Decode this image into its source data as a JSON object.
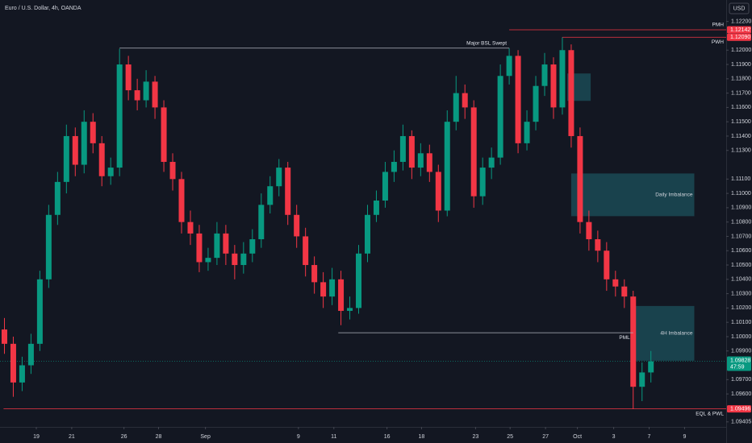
{
  "chart_data": {
    "type": "candlestick",
    "title": "Euro / U.S. Dollar, 4h, OANDA",
    "currency": "USD",
    "up_color": "#089981",
    "down_color": "#f23645",
    "grid": false,
    "xlim": [
      0,
      82
    ],
    "ylim": [
      1.0937,
      1.1235
    ],
    "x": [
      0.5,
      1.5,
      2.5,
      3.5,
      4.5,
      5.5,
      6.5,
      7.5,
      8.5,
      9.5,
      10.5,
      11.5,
      12.5,
      13.5,
      14.5,
      15.5,
      16.5,
      17.5,
      18.5,
      19.5,
      20.5,
      21.5,
      22.5,
      23.5,
      24.5,
      25.5,
      26.5,
      27.5,
      28.5,
      29.5,
      30.5,
      31.5,
      32.5,
      33.5,
      34.5,
      35.5,
      36.5,
      37.5,
      38.5,
      39.5,
      40.5,
      41.5,
      42.5,
      43.5,
      44.5,
      45.5,
      46.5,
      47.5,
      48.5,
      49.5,
      50.5,
      51.5,
      52.5,
      53.5,
      54.5,
      55.5,
      56.5,
      57.5,
      58.5,
      59.5,
      60.5,
      61.5,
      62.5,
      63.5,
      64.5,
      65.5,
      66.5,
      67.5,
      68.5,
      69.5,
      70.5,
      71.5,
      72.5,
      73.5
    ],
    "open": [
      1.1005,
      1.0995,
      1.0968,
      1.098,
      1.0995,
      1.104,
      1.1085,
      1.1108,
      1.114,
      1.112,
      1.115,
      1.1135,
      1.1112,
      1.1118,
      1.119,
      1.1172,
      1.1165,
      1.1178,
      1.116,
      1.1122,
      1.111,
      1.108,
      1.1072,
      1.1052,
      1.1055,
      1.1072,
      1.1058,
      1.105,
      1.1058,
      1.1068,
      1.1092,
      1.1105,
      1.1118,
      1.1085,
      1.107,
      1.105,
      1.1038,
      1.1028,
      1.104,
      1.1018,
      1.102,
      1.1058,
      1.1085,
      1.1095,
      1.1115,
      1.1122,
      1.114,
      1.1118,
      1.1128,
      1.1115,
      1.1088,
      1.115,
      1.117,
      1.116,
      1.1098,
      1.1118,
      1.1125,
      1.1182,
      1.1196,
      1.1135,
      1.115,
      1.1175,
      1.119,
      1.116,
      1.12,
      1.114,
      1.108,
      1.1068,
      1.106,
      1.104,
      1.1035,
      1.1028,
      1.0965,
      1.0975
    ],
    "high": [
      1.1013,
      1.1,
      1.0986,
      1.1002,
      1.1046,
      1.1092,
      1.1115,
      1.1148,
      1.1146,
      1.1158,
      1.1156,
      1.114,
      1.1125,
      1.1201,
      1.1196,
      1.118,
      1.1186,
      1.1182,
      1.1165,
      1.1128,
      1.1115,
      1.1088,
      1.1078,
      1.1062,
      1.108,
      1.1078,
      1.1064,
      1.1066,
      1.1075,
      1.11,
      1.1112,
      1.1124,
      1.1122,
      1.1092,
      1.1076,
      1.1056,
      1.1045,
      1.1048,
      1.1046,
      1.1028,
      1.1064,
      1.1092,
      1.1102,
      1.1122,
      1.113,
      1.1148,
      1.1144,
      1.1135,
      1.1134,
      1.112,
      1.1158,
      1.1182,
      1.1176,
      1.1165,
      1.1125,
      1.1132,
      1.119,
      1.12014,
      1.12,
      1.1158,
      1.1182,
      1.1198,
      1.1195,
      1.1209,
      1.1204,
      1.1146,
      1.1088,
      1.1074,
      1.1066,
      1.1046,
      1.104,
      1.1032,
      1.0982,
      1.099
    ],
    "low": [
      1.0988,
      1.0958,
      1.0962,
      1.0974,
      1.099,
      1.1034,
      1.1078,
      1.11,
      1.1112,
      1.1114,
      1.1128,
      1.1105,
      1.1106,
      1.1112,
      1.1165,
      1.1158,
      1.116,
      1.1152,
      1.1115,
      1.1102,
      1.1072,
      1.1064,
      1.1045,
      1.1046,
      1.105,
      1.105,
      1.104,
      1.1044,
      1.1052,
      1.1062,
      1.1086,
      1.1098,
      1.1078,
      1.1062,
      1.1042,
      1.103,
      1.102,
      1.1022,
      1.1008,
      1.1012,
      1.1016,
      1.1052,
      1.108,
      1.109,
      1.1108,
      1.1116,
      1.111,
      1.1112,
      1.1108,
      1.108,
      1.1084,
      1.1144,
      1.1152,
      1.109,
      1.1092,
      1.111,
      1.112,
      1.1176,
      1.1128,
      1.113,
      1.1144,
      1.1168,
      1.1152,
      1.1155,
      1.1132,
      1.1072,
      1.106,
      1.1052,
      1.1032,
      1.1028,
      1.102,
      1.09496,
      1.0955,
      1.0968
    ],
    "close": [
      1.0995,
      1.0968,
      1.098,
      1.0995,
      1.104,
      1.1085,
      1.1108,
      1.114,
      1.112,
      1.115,
      1.1135,
      1.1112,
      1.1118,
      1.119,
      1.1172,
      1.1165,
      1.1178,
      1.116,
      1.1122,
      1.111,
      1.108,
      1.1072,
      1.1052,
      1.1055,
      1.1072,
      1.1058,
      1.105,
      1.1058,
      1.1068,
      1.1092,
      1.1105,
      1.1118,
      1.1085,
      1.107,
      1.105,
      1.1038,
      1.1028,
      1.104,
      1.1018,
      1.102,
      1.1058,
      1.1085,
      1.1095,
      1.1115,
      1.1122,
      1.114,
      1.1118,
      1.1128,
      1.1115,
      1.1088,
      1.115,
      1.117,
      1.116,
      1.1098,
      1.1118,
      1.1125,
      1.1182,
      1.1196,
      1.1135,
      1.115,
      1.1175,
      1.119,
      1.116,
      1.12,
      1.114,
      1.108,
      1.1068,
      1.106,
      1.104,
      1.1035,
      1.1028,
      1.0965,
      1.0975,
      1.09828
    ],
    "xticks": [
      {
        "value": 4.1,
        "label": "19"
      },
      {
        "value": 8.1,
        "label": "21"
      },
      {
        "value": 14.0,
        "label": "26"
      },
      {
        "value": 17.9,
        "label": "28"
      },
      {
        "value": 23.2,
        "label": "Sep"
      },
      {
        "value": 33.7,
        "label": "9"
      },
      {
        "value": 37.7,
        "label": "11"
      },
      {
        "value": 43.7,
        "label": "16"
      },
      {
        "value": 47.6,
        "label": "18"
      },
      {
        "value": 53.7,
        "label": "23"
      },
      {
        "value": 57.6,
        "label": "25"
      },
      {
        "value": 61.6,
        "label": "27"
      },
      {
        "value": 65.2,
        "label": "Oct"
      },
      {
        "value": 69.3,
        "label": "3"
      },
      {
        "value": 73.3,
        "label": "7"
      },
      {
        "value": 77.3,
        "label": "9"
      }
    ],
    "yticks": [
      {
        "value": 1.122,
        "label": "1.12200"
      },
      {
        "value": 1.12,
        "label": "1.12000"
      },
      {
        "value": 1.119,
        "label": "1.11900"
      },
      {
        "value": 1.118,
        "label": "1.11800"
      },
      {
        "value": 1.117,
        "label": "1.11700"
      },
      {
        "value": 1.116,
        "label": "1.11600"
      },
      {
        "value": 1.115,
        "label": "1.11500"
      },
      {
        "value": 1.114,
        "label": "1.11400"
      },
      {
        "value": 1.113,
        "label": "1.11300"
      },
      {
        "value": 1.111,
        "label": "1.11100"
      },
      {
        "value": 1.11,
        "label": "1.11000"
      },
      {
        "value": 1.109,
        "label": "1.10900"
      },
      {
        "value": 1.108,
        "label": "1.10800"
      },
      {
        "value": 1.107,
        "label": "1.10700"
      },
      {
        "value": 1.106,
        "label": "1.10600"
      },
      {
        "value": 1.105,
        "label": "1.10500"
      },
      {
        "value": 1.104,
        "label": "1.10400"
      },
      {
        "value": 1.103,
        "label": "1.10300"
      },
      {
        "value": 1.102,
        "label": "1.10200"
      },
      {
        "value": 1.101,
        "label": "1.10100"
      },
      {
        "value": 1.1,
        "label": "1.10000"
      },
      {
        "value": 1.099,
        "label": "1.09900"
      },
      {
        "value": 1.097,
        "label": "1.09700"
      },
      {
        "value": 1.096,
        "label": "1.09600"
      },
      {
        "value": 1.09405,
        "label": "1.09405"
      }
    ],
    "levels": [
      {
        "label": "Major BSL Swept",
        "value": 1.12014,
        "x": [
          13.5,
          57.5
        ],
        "color": "#b2b5be"
      },
      {
        "label": "PMH",
        "value": 1.12142,
        "value_label": "1.12142",
        "x": [
          57.5,
          82
        ],
        "color": "#f23645"
      },
      {
        "label": "PWH",
        "value": 1.1209,
        "value_label": "1.12090",
        "x": [
          63.5,
          82
        ],
        "color": "#f23645"
      },
      {
        "label": "PML",
        "value": 1.10027,
        "x": [
          38.2,
          71.5
        ],
        "color": "#b2b5be"
      },
      {
        "label": "EQL & PWL",
        "value": 1.09496,
        "value_label": "1.09496",
        "x": [
          0.4,
          82
        ],
        "color": "#f23645"
      }
    ],
    "boxes": [
      {
        "x": [
          64.05,
          66.7
        ],
        "y": [
          1.11646,
          1.11837
        ],
        "color": "#1b4a55"
      },
      {
        "label": "Daily Imbalance",
        "x": [
          64.5,
          78.4
        ],
        "y": [
          1.10841,
          1.11139
        ],
        "color": "#1b4a55"
      },
      {
        "label": "4H Imbalance",
        "x": [
          71.6,
          78.4
        ],
        "y": [
          1.09832,
          1.10214
        ],
        "color": "#1b4a55"
      }
    ],
    "last_price": {
      "value": 1.09828,
      "label": "1.09828",
      "countdown": "47:59",
      "color": "#089981"
    }
  }
}
